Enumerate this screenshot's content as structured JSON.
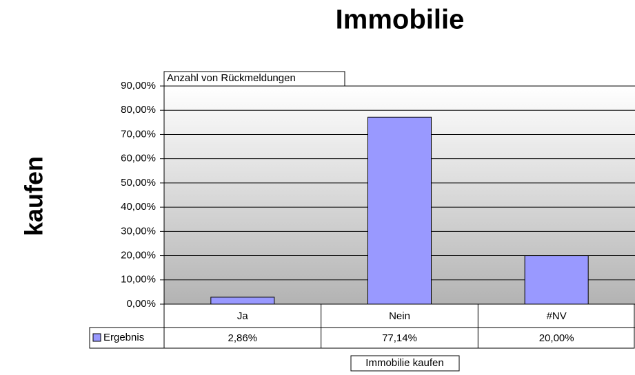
{
  "chart_data": {
    "type": "bar",
    "title": "Immobilie",
    "y_label": "kaufen",
    "x_label": "Immobilie kaufen",
    "data_field": "Anzahl von Rückmeldungen",
    "categories": [
      "Ja",
      "Nein",
      "#NV"
    ],
    "series": [
      {
        "name": "Ergebnis",
        "color": "#9999ff",
        "values": [
          2.86,
          77.14,
          20.0
        ],
        "value_labels": [
          "2,86%",
          "77,14%",
          "20,00%"
        ]
      }
    ],
    "ylim": [
      0,
      90
    ],
    "yticks": [
      {
        "value": 0,
        "label": "0,00%"
      },
      {
        "value": 10,
        "label": "10,00%"
      },
      {
        "value": 20,
        "label": "20,00%"
      },
      {
        "value": 30,
        "label": "30,00%"
      },
      {
        "value": 40,
        "label": "40,00%"
      },
      {
        "value": 50,
        "label": "50,00%"
      },
      {
        "value": 60,
        "label": "60,00%"
      },
      {
        "value": 70,
        "label": "70,00%"
      },
      {
        "value": 80,
        "label": "80,00%"
      },
      {
        "value": 90,
        "label": "90,00%"
      }
    ],
    "grid": true,
    "data_table": true
  }
}
